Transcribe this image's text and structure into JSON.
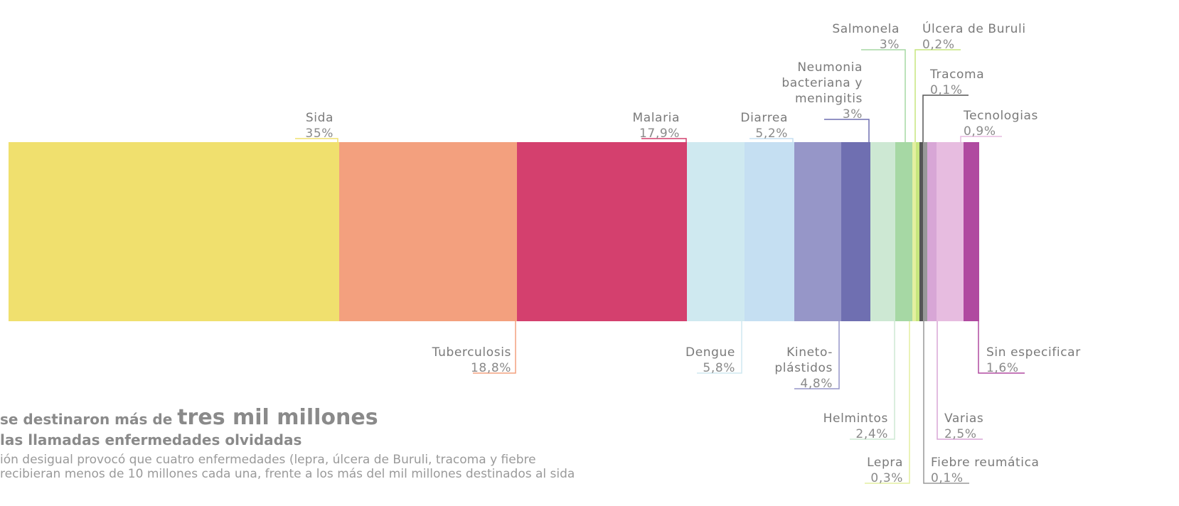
{
  "chart_data": {
    "type": "bar",
    "stacked": "horizontal-100",
    "segments": [
      {
        "name": "Sida",
        "value": 35,
        "label": "35%",
        "color": "#f0e06e",
        "position": "top"
      },
      {
        "name": "Tuberculosis",
        "value": 18.8,
        "label": "18,8%",
        "color": "#f3a07e",
        "position": "bottom"
      },
      {
        "name": "Malaria",
        "value": 17.9,
        "label": "17,9%",
        "color": "#d4406e",
        "position": "top"
      },
      {
        "name": "Dengue",
        "value": 5.8,
        "label": "5,8%",
        "color": "#cfe9f0",
        "position": "bottom"
      },
      {
        "name": "Diarrea",
        "value": 5.2,
        "label": "5,2%",
        "color": "#c5dff2",
        "position": "top"
      },
      {
        "name": "Kineto-plástidos",
        "lines": [
          "Kineto-",
          "plástidos"
        ],
        "value": 4.8,
        "label": "4,8%",
        "color": "#9696c8",
        "position": "bottom"
      },
      {
        "name": "Neumonia bacteriana y meningitis",
        "lines": [
          "Neumonia",
          "bacteriana y",
          "meningitis"
        ],
        "value": 3,
        "label": "3%",
        "color": "#6f6fb1",
        "position": "top"
      },
      {
        "name": "Helmintos",
        "value": 2.4,
        "label": "2,4%",
        "color": "#cde8d3",
        "position": "bottom"
      },
      {
        "name": "Salmonela",
        "value": 3,
        "label": "3%",
        "color": "#a6d8a4",
        "position": "top"
      },
      {
        "name": "Lepra",
        "value": 0.3,
        "label": "0,3%",
        "color": "#e3efa0",
        "position": "bottom"
      },
      {
        "name": "Úlcera de Buruli",
        "value": 0.2,
        "label": "0,2%",
        "color": "#c6e67e",
        "position": "top"
      },
      {
        "name": "Tracoma",
        "value": 0.1,
        "label": "0,1%",
        "color": "#555555",
        "position": "top"
      },
      {
        "name": "Fiebre reumática",
        "value": 0.1,
        "label": "0,1%",
        "color": "#999999",
        "position": "bottom"
      },
      {
        "name": "Varias",
        "value": 2.5,
        "label": "2,5%",
        "color": "#d8a6d6",
        "position": "bottom"
      },
      {
        "name": "Tecnologias",
        "value": 0.9,
        "label": "0,9%",
        "color": "#e7bce0",
        "position": "top"
      },
      {
        "name": "Sin especificar",
        "value": 1.6,
        "label": "1,6%",
        "color": "#b04aa0",
        "position": "bottom"
      }
    ]
  },
  "caption": {
    "line1_prefix": "se destinaron más de ",
    "line1_emphasis": "tres mil millones",
    "line2": "las llamadas enfermedades olvidadas",
    "body_line1": "ión desigual provocó que cuatro enfermedades (lepra, úlcera de Buruli, tracoma y fiebre",
    "body_line2": "recibieran menos de 10 millones cada una, frente a los más del mil millones destinados al sida"
  }
}
